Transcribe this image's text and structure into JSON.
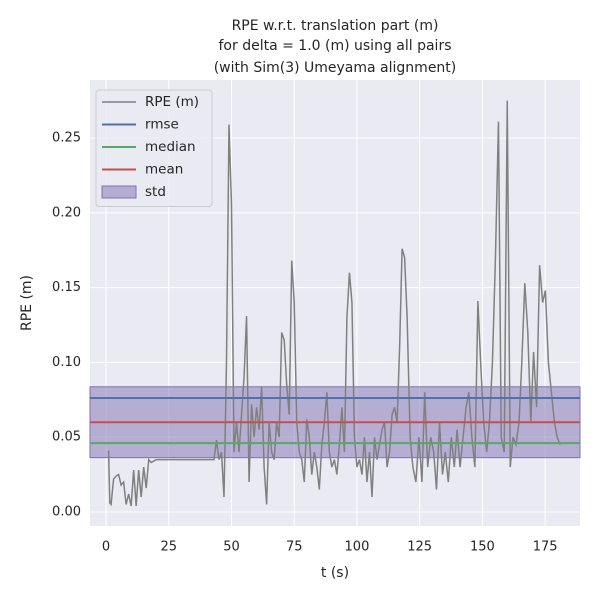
{
  "chart_data": {
    "type": "line",
    "title": [
      "RPE w.r.t. translation part (m)",
      "for delta = 1.0 (m) using all pairs",
      "(with Sim(3) Umeyama alignment)"
    ],
    "x_label": "t (s)",
    "y_label": "RPE (m)",
    "xlim": [
      -6.4,
      188.9
    ],
    "ylim": [
      -0.0094,
      0.2888
    ],
    "xticks": [
      0,
      25,
      50,
      75,
      100,
      125,
      150,
      175
    ],
    "yticks": [
      {
        "value": 0,
        "label": "0.00"
      },
      0.05,
      {
        "value": 0.1,
        "label": "0.10"
      },
      0.15,
      {
        "value": 0.2,
        "label": "0.20"
      },
      0.25
    ],
    "grid": true,
    "legend": "upper left",
    "series": [
      {
        "name": "RPE (m)",
        "color": "#808080",
        "x": [
          1,
          1.5,
          2,
          3,
          4,
          5,
          6,
          7,
          8,
          9,
          10,
          11,
          12,
          13,
          14,
          15,
          16,
          17,
          18,
          20,
          30,
          43,
          44,
          45,
          46,
          47,
          48,
          49,
          50,
          51,
          52,
          53,
          54,
          55,
          56,
          57,
          58,
          59,
          60,
          61,
          62,
          63,
          64,
          65,
          66,
          67,
          68,
          69,
          70,
          71,
          72,
          73,
          74,
          75,
          76,
          77,
          78,
          79,
          80,
          81,
          82,
          83,
          84,
          85,
          86,
          87,
          88,
          89,
          90,
          91,
          92,
          93,
          94,
          95,
          96,
          97,
          98,
          99,
          100,
          101,
          102,
          103,
          104,
          105,
          106,
          107,
          108,
          109,
          110,
          111,
          112,
          113,
          114,
          115,
          116,
          117,
          118,
          119,
          120,
          121.2,
          122.3,
          123.5,
          124.7,
          125.9,
          127,
          128.2,
          129.4,
          130.6,
          131.7,
          132.9,
          134.1,
          135.2,
          136.4,
          137.6,
          138.8,
          139.9,
          141.1,
          142.3,
          143.5,
          144.6,
          145.8,
          147,
          148.2,
          149.3,
          150.5,
          151.7,
          152.8,
          154,
          155.2,
          156.4,
          157.5,
          158.7,
          159.9,
          161.1,
          162.2,
          163.4,
          164.6,
          165.7,
          166.9,
          168.1,
          169.3,
          170.4,
          171.6,
          172.8,
          174,
          175.1,
          176.3,
          177.5,
          178.7,
          179.8,
          181
        ],
        "values": [
          0.041,
          0.006,
          0.005,
          0.022,
          0.024,
          0.025,
          0.018,
          0.02,
          0.005,
          0.012,
          0.004,
          0.028,
          0.004,
          0.028,
          0.01,
          0.03,
          0.016,
          0.035,
          0.033,
          0.035,
          0.035,
          0.035,
          0.048,
          0.035,
          0.04,
          0.01,
          0.1,
          0.259,
          0.205,
          0.04,
          0.06,
          0.04,
          0.065,
          0.09,
          0.131,
          0.02,
          0.072,
          0.05,
          0.07,
          0.055,
          0.084,
          0.03,
          0.005,
          0.06,
          0.04,
          0.035,
          0.06,
          0.05,
          0.12,
          0.115,
          0.085,
          0.065,
          0.168,
          0.14,
          0.06,
          0.04,
          0.035,
          0.02,
          0.062,
          0.05,
          0.025,
          0.04,
          0.03,
          0.015,
          0.045,
          0.06,
          0.08,
          0.04,
          0.03,
          0.035,
          0.025,
          0.045,
          0.07,
          0.04,
          0.13,
          0.16,
          0.14,
          0.05,
          0.03,
          0.035,
          0.025,
          0.05,
          0.02,
          0.04,
          0.01,
          0.05,
          0.035,
          0.045,
          0.055,
          0.06,
          0.03,
          0.04,
          0.065,
          0.07,
          0.06,
          0.11,
          0.176,
          0.17,
          0.13,
          0.05,
          0.03,
          0.02,
          0.05,
          0.02,
          0.08,
          0.03,
          0.05,
          0.04,
          0.015,
          0.06,
          0.025,
          0.04,
          0.02,
          0.05,
          0.03,
          0.055,
          0.03,
          0.05,
          0.07,
          0.08,
          0.05,
          0.03,
          0.141,
          0.1,
          0.06,
          0.04,
          0.06,
          0.1,
          0.17,
          0.261,
          0.05,
          0.04,
          0.275,
          0.03,
          0.05,
          0.045,
          0.06,
          0.1,
          0.153,
          0.12,
          0.06,
          0.107,
          0.07,
          0.165,
          0.14,
          0.148,
          0.1,
          0.08,
          0.06,
          0.05,
          0.045
        ]
      }
    ],
    "hlines": [
      {
        "name": "rmse",
        "color": "#4c72b0",
        "value": 0.0762
      },
      {
        "name": "median",
        "color": "#55a868",
        "value": 0.046
      },
      {
        "name": "mean",
        "color": "#c44e52",
        "value": 0.06
      }
    ],
    "band": {
      "name": "std",
      "color": "#8172b2",
      "value": 0.0237
    }
  }
}
